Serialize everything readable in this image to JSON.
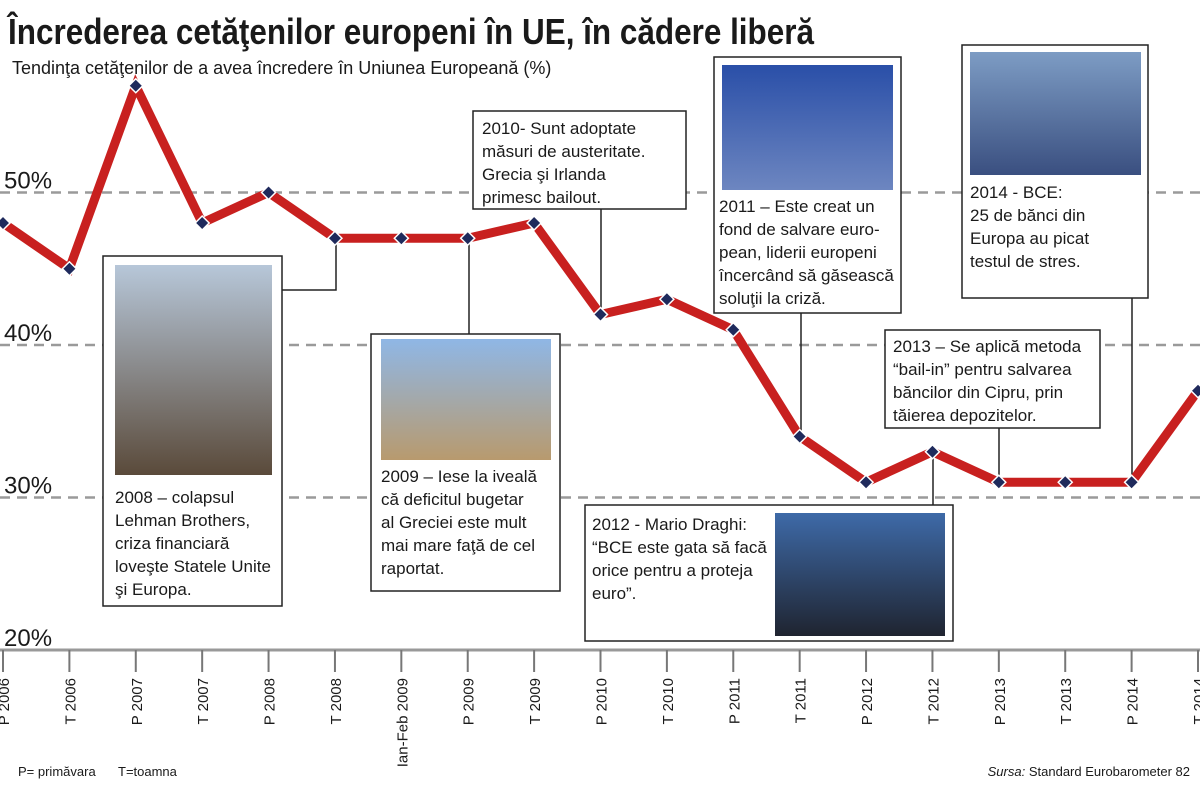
{
  "chart_data": {
    "type": "line",
    "title": "Încrederea cetăţenilor europeni în UE, în cădere liberă",
    "subtitle": "Tendinţa cetăţenilor de a avea încredere în Uniunea Europeană (%)",
    "categories": [
      "P 2006",
      "T 2006",
      "P 2007",
      "T 2007",
      "P 2008",
      "T 2008",
      "Ian-Feb 2009",
      "P 2009",
      "T 2009",
      "P 2010",
      "T 2010",
      "P 2011",
      "T 2011",
      "P 2012",
      "T 2012",
      "P 2013",
      "T 2013",
      "P 2014",
      "T 2014"
    ],
    "values": [
      48,
      45,
      57,
      48,
      50,
      47,
      47,
      47,
      48,
      42,
      43,
      41,
      34,
      31,
      33,
      31,
      31,
      31,
      37
    ],
    "color": "#c8201f",
    "marker_color": "#1f2a5c",
    "ylim": [
      20,
      62
    ],
    "yticks": [
      {
        "value": 20,
        "label": "20%"
      },
      {
        "value": 30,
        "label": "30%"
      },
      {
        "value": 40,
        "label": "40%"
      },
      {
        "value": 50,
        "label": "50%"
      }
    ],
    "grid": true,
    "annotations": [
      {
        "lines": [
          "2008 – colapsul",
          "Lehman Brothers,",
          "criza financiară",
          "loveşte Statele Unite",
          "şi Europa."
        ]
      },
      {
        "lines": [
          "2009 – Iese la iveală",
          "că deficitul bugetar",
          "al Greciei este mult",
          "mai mare faţă de cel",
          "raportat."
        ]
      },
      {
        "lines": [
          "2010- Sunt adoptate",
          "măsuri de austeritate.",
          "Grecia şi Irlanda",
          "primesc bailout."
        ]
      },
      {
        "lines": [
          "2011 – Este creat un",
          "fond de salvare euro-",
          "pean, liderii europeni",
          "încercând să găsească",
          "soluţii la criză."
        ]
      },
      {
        "lines": [
          "2012 - Mario Draghi:",
          "“BCE este gata să facă",
          "orice pentru a proteja",
          "euro”."
        ]
      },
      {
        "lines": [
          "2013 – Se aplică metoda",
          "“bail-in” pentru salvarea",
          "băncilor din Cipru, prin",
          "tăierea depozitelor."
        ]
      },
      {
        "lines": [
          "2014 - BCE:",
          "25 de bănci din",
          "Europa au picat",
          "testul de stres."
        ]
      }
    ],
    "legend_note": [
      "P= primăvara",
      "T=toamna"
    ],
    "source_label": "Sursa:",
    "source": "Standard Eurobarometer 82"
  }
}
